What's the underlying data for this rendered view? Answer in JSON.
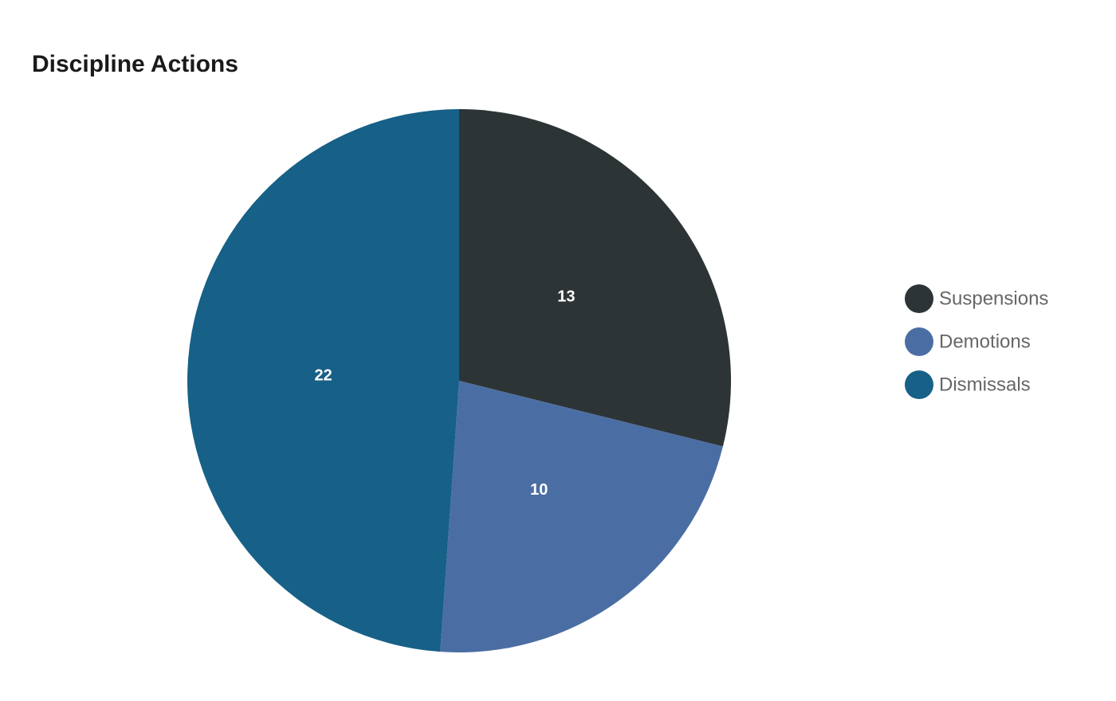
{
  "chart_data": {
    "type": "pie",
    "title": "Discipline Actions",
    "categories": [
      "Suspensions",
      "Demotions",
      "Dismissals"
    ],
    "values": [
      13,
      10,
      22
    ],
    "colors": [
      "#2d3436",
      "#4a6ea3",
      "#176087"
    ],
    "legend": "right"
  }
}
